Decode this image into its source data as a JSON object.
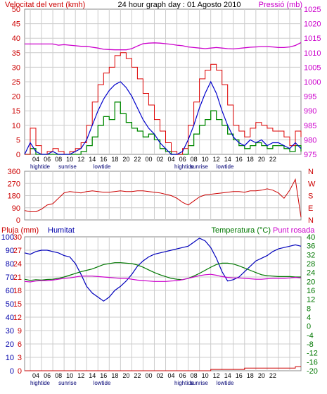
{
  "colors": {
    "wind": "#dd0000",
    "wind_avg": "#0000cc",
    "wind_green": "#008800",
    "pressure": "#cc00cc",
    "direction": "#cc0000",
    "rain": "#cc0000",
    "humidity": "#0000bb",
    "temperature": "#007700",
    "dewpoint": "#cc00cc",
    "grid": "#cccccc",
    "frame": "#888888",
    "lefttext_red": "#cc0000",
    "lefttext_blue": "#0000aa",
    "right_magenta": "#cc00cc",
    "right_green": "#007700"
  },
  "chart_data": [
    {
      "type": "line",
      "title": "24 hour graph day : 01 Agosto 2010",
      "ylabel_left": "Velocitat del vent (kmh)",
      "ylabel_right": "Pressió (mb)",
      "yticks_left": [
        "0",
        "5",
        "10",
        "15",
        "20",
        "25",
        "30",
        "35",
        "40",
        "45",
        "50"
      ],
      "yticks_right": [
        "975",
        "980",
        "985",
        "990",
        "995",
        "1000",
        "1005",
        "1010",
        "1015",
        "1020",
        "1025"
      ],
      "ylim_left": [
        0,
        50
      ],
      "ylim_right": [
        975,
        1025
      ],
      "xlabels": [
        "04",
        "06",
        "08",
        "10",
        "12",
        "14",
        "16",
        "18",
        "20",
        "22",
        "00",
        "02",
        "04",
        "06",
        "08",
        "10",
        "12",
        "14",
        "16",
        "18",
        "20",
        "22"
      ],
      "events_below": [
        "hightide",
        "sunrise",
        "lowtide",
        "hightide",
        "sunrise",
        "lowtide"
      ],
      "x_hours": [
        0,
        1,
        2,
        3,
        4,
        5,
        6,
        7,
        8,
        9,
        10,
        11,
        12,
        13,
        14,
        15,
        16,
        17,
        18,
        19,
        20,
        21,
        22,
        23,
        24,
        25,
        26,
        27,
        28,
        29,
        30,
        31,
        32,
        33,
        34,
        35,
        36,
        37,
        38,
        39,
        40,
        41,
        42,
        43,
        44,
        45,
        46,
        47,
        48,
        49
      ],
      "series": [
        {
          "name": "gust",
          "axis": "left",
          "values": [
            0,
            9,
            3,
            0,
            1,
            2,
            1,
            0,
            1,
            2,
            4,
            10,
            18,
            24,
            28,
            30,
            34,
            35,
            33,
            30,
            26,
            21,
            17,
            12,
            8,
            4,
            1,
            0,
            2,
            10,
            18,
            26,
            29,
            31,
            29,
            24,
            17,
            10,
            8,
            6,
            9,
            11,
            10,
            9,
            8,
            8,
            6,
            3,
            8,
            6
          ]
        },
        {
          "name": "average",
          "axis": "left",
          "values": [
            0,
            4,
            1,
            0,
            0,
            1,
            0,
            0,
            0,
            1,
            2,
            5,
            10,
            15,
            19,
            22,
            24,
            25,
            23,
            20,
            16,
            12,
            9,
            7,
            4,
            2,
            0,
            0,
            1,
            5,
            10,
            16,
            21,
            25,
            21,
            15,
            10,
            6,
            4,
            3,
            5,
            4,
            5,
            3,
            4,
            4,
            3,
            2,
            4,
            2
          ]
        },
        {
          "name": "green",
          "axis": "left",
          "values": [
            0,
            2,
            0,
            0,
            0,
            0,
            0,
            0,
            0,
            0,
            1,
            3,
            6,
            10,
            13,
            12,
            18,
            14,
            11,
            9,
            8,
            6,
            7,
            5,
            2,
            1,
            0,
            0,
            0,
            3,
            7,
            10,
            12,
            15,
            12,
            10,
            7,
            5,
            3,
            2,
            3,
            4,
            3,
            2,
            3,
            3,
            2,
            1,
            3,
            1
          ]
        },
        {
          "name": "pressure",
          "axis": "right",
          "values": [
            1013,
            1013,
            1013,
            1013,
            1013,
            1013,
            1012.6,
            1012.8,
            1012.6,
            1012.4,
            1012.2,
            1012.2,
            1011.9,
            1011.6,
            1011.2,
            1011.1,
            1011,
            1011,
            1011,
            1011.4,
            1012.3,
            1013.1,
            1013.3,
            1013.4,
            1013.3,
            1013.1,
            1012.9,
            1012.6,
            1012.4,
            1012,
            1011.8,
            1011.6,
            1011.4,
            1011.6,
            1011.8,
            1011.6,
            1011.4,
            1011.3,
            1011.5,
            1011.7,
            1011.9,
            1012,
            1012.1,
            1012.1,
            1012,
            1011.8,
            1011.8,
            1012,
            1012.5,
            1013.5
          ]
        }
      ]
    },
    {
      "type": "line",
      "ylabel_left": "",
      "yticks_left": [
        "0",
        "90",
        "180",
        "270",
        "360"
      ],
      "ylim_left": [
        0,
        360
      ],
      "direction_labels": [
        "N",
        "W",
        "S",
        "E",
        "N"
      ],
      "x_hours": [
        0,
        1,
        2,
        3,
        4,
        5,
        6,
        7,
        8,
        9,
        10,
        11,
        12,
        13,
        14,
        15,
        16,
        17,
        18,
        19,
        20,
        21,
        22,
        23,
        24,
        25,
        26,
        27,
        28,
        29,
        30,
        31,
        32,
        33,
        34,
        35,
        36,
        37,
        38,
        39,
        40,
        41,
        42,
        43,
        44,
        45,
        46,
        47,
        48,
        49
      ],
      "series": [
        {
          "name": "direction",
          "values": [
            70,
            60,
            60,
            80,
            110,
            120,
            160,
            200,
            210,
            205,
            200,
            210,
            215,
            210,
            205,
            205,
            210,
            215,
            210,
            210,
            215,
            215,
            210,
            205,
            200,
            190,
            180,
            160,
            130,
            110,
            140,
            170,
            185,
            190,
            195,
            200,
            205,
            210,
            210,
            205,
            215,
            215,
            220,
            230,
            220,
            200,
            160,
            220,
            300,
            20
          ]
        }
      ]
    },
    {
      "type": "line",
      "ylabel_left": "Pluja (mm)",
      "ylabel_left2": "Humitat",
      "ylabel_right": "Temperatura (°C)",
      "ylabel_right2": "Punt rosada",
      "yticks_left_rain": [
        "0",
        "10",
        "20",
        "30",
        "40",
        "50",
        "60",
        "70",
        "80",
        "90",
        "100"
      ],
      "yticks_left_hum": [
        "0",
        "3",
        "6",
        "9",
        "12",
        "15",
        "18",
        "21",
        "24",
        "27",
        "30"
      ],
      "yticks_right": [
        "-20",
        "-16",
        "-12",
        "-8",
        "-4",
        "0",
        "4",
        "8",
        "12",
        "16",
        "20",
        "24",
        "28",
        "32",
        "36",
        "40"
      ],
      "ylim_left": [
        0,
        100
      ],
      "ylim_right": [
        -20,
        40
      ],
      "x_hours": [
        0,
        1,
        2,
        3,
        4,
        5,
        6,
        7,
        8,
        9,
        10,
        11,
        12,
        13,
        14,
        15,
        16,
        17,
        18,
        19,
        20,
        21,
        22,
        23,
        24,
        25,
        26,
        27,
        28,
        29,
        30,
        31,
        32,
        33,
        34,
        35,
        36,
        37,
        38,
        39,
        40,
        41,
        42,
        43,
        44,
        45,
        46,
        47,
        48,
        49
      ],
      "series": [
        {
          "name": "humidity",
          "axis": "left",
          "values": [
            88,
            87,
            89,
            90,
            90,
            89,
            88,
            86,
            85,
            80,
            72,
            63,
            58,
            55,
            52,
            55,
            60,
            63,
            67,
            72,
            78,
            82,
            85,
            87,
            88,
            89,
            90,
            91,
            92,
            93,
            96,
            99,
            97,
            92,
            84,
            74,
            67,
            68,
            70,
            74,
            78,
            82,
            84,
            86,
            89,
            91,
            92,
            93,
            94,
            93
          ]
        },
        {
          "name": "temperature",
          "axis": "right",
          "values": [
            21,
            20.5,
            20.8,
            20.6,
            20.9,
            21,
            21.4,
            22,
            22.8,
            23.6,
            24.4,
            25,
            25.6,
            26.6,
            27.6,
            28,
            28.4,
            28.4,
            28.2,
            28,
            27.4,
            26.4,
            25.2,
            24,
            23,
            22.2,
            21.4,
            21,
            20.8,
            21.4,
            22.4,
            23.6,
            25,
            26.4,
            27.6,
            28.2,
            28.2,
            27.8,
            27,
            26,
            25,
            24,
            23,
            22.6,
            22.4,
            22.2,
            22.2,
            22.2,
            22,
            22
          ]
        },
        {
          "name": "dewpoint",
          "axis": "right",
          "values": [
            20,
            19.8,
            20.2,
            20.4,
            20.4,
            20.6,
            21,
            21.4,
            21.6,
            22,
            22.4,
            22.4,
            22.4,
            22.2,
            22,
            21.8,
            21.6,
            21.4,
            21.4,
            21,
            20.6,
            20.4,
            20.2,
            20,
            20,
            20,
            20.2,
            20.4,
            20.8,
            21.4,
            22,
            22.6,
            23,
            23.2,
            22.8,
            22.2,
            21.8,
            21.6,
            21.6,
            21.4,
            21.2,
            21,
            21,
            21.2,
            21.4,
            21.4,
            21.4,
            21.6,
            21.8,
            21.6
          ]
        },
        {
          "name": "rain",
          "axis": "left",
          "values": [
            0,
            0,
            0,
            0,
            0,
            0,
            0,
            0,
            0,
            0,
            0,
            0,
            0,
            0,
            0,
            0,
            0,
            0,
            0,
            0,
            0,
            0,
            0,
            0,
            0,
            0,
            0,
            0,
            0,
            0,
            0,
            0,
            0,
            1,
            1,
            1,
            1,
            1,
            1,
            2,
            2,
            2,
            2,
            2,
            2,
            2,
            2,
            2,
            3,
            3
          ]
        }
      ]
    }
  ]
}
